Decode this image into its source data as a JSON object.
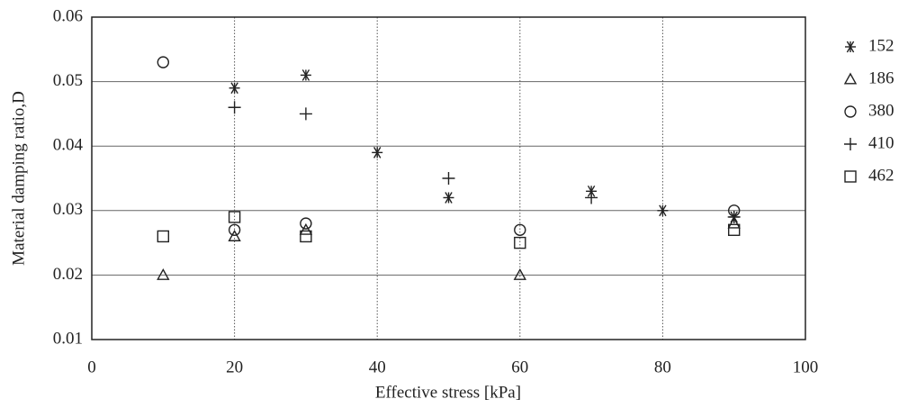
{
  "chart_data": {
    "type": "scatter",
    "xlabel": "Effective stress  [kPa]",
    "ylabel": "Material damping ratio,D",
    "xlim": [
      0,
      100
    ],
    "xticks": [
      0,
      20,
      40,
      60,
      80,
      100
    ],
    "ylim": [
      0.01,
      0.06
    ],
    "yticks": [
      0.01,
      0.02,
      0.03,
      0.04,
      0.05,
      0.06
    ],
    "grid": true,
    "legend": "right",
    "series": [
      {
        "name": "152",
        "marker": "asterisk",
        "color": "#222222",
        "x": [
          20,
          30,
          40,
          50,
          70,
          80,
          90
        ],
        "values": [
          0.049,
          0.051,
          0.039,
          0.032,
          0.033,
          0.03,
          0.029
        ]
      },
      {
        "name": "186",
        "marker": "triangle",
        "color": "#222222",
        "x": [
          10,
          20,
          30,
          60,
          90
        ],
        "values": [
          0.02,
          0.026,
          0.027,
          0.02,
          0.028
        ]
      },
      {
        "name": "380",
        "marker": "circle",
        "color": "#222222",
        "x": [
          10,
          20,
          30,
          60,
          90
        ],
        "values": [
          0.053,
          0.027,
          0.028,
          0.027,
          0.03
        ]
      },
      {
        "name": "410",
        "marker": "plus",
        "color": "#222222",
        "x": [
          20,
          30,
          50,
          70,
          90
        ],
        "values": [
          0.046,
          0.045,
          0.035,
          0.032,
          0.029
        ]
      },
      {
        "name": "462",
        "marker": "square",
        "color": "#222222",
        "x": [
          10,
          20,
          30,
          60,
          90
        ],
        "values": [
          0.026,
          0.029,
          0.026,
          0.025,
          0.027
        ]
      }
    ]
  }
}
